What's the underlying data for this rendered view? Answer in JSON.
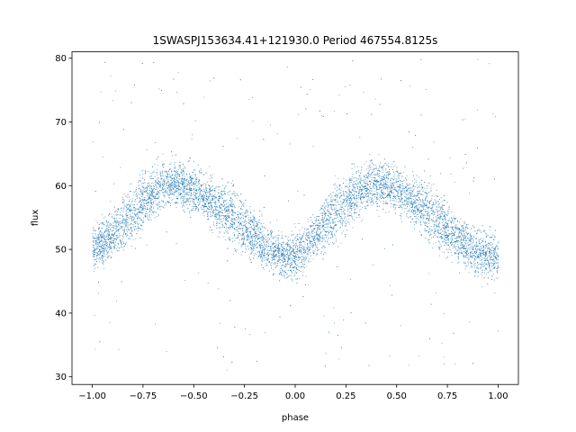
{
  "chart_data": {
    "type": "scatter",
    "title": "1SWASPJ153634.41+121930.0 Period 467554.8125s",
    "xlabel": "phase",
    "ylabel": "flux",
    "xlim": [
      -1.1,
      1.1
    ],
    "ylim": [
      28.8,
      81.0
    ],
    "xticks": [
      -1.0,
      -0.75,
      -0.5,
      -0.25,
      0.0,
      0.25,
      0.5,
      0.75,
      1.0
    ],
    "xtick_labels": [
      "−1.00",
      "−0.75",
      "−0.50",
      "−0.25",
      "0.00",
      "0.25",
      "0.50",
      "0.75",
      "1.00"
    ],
    "yticks": [
      30,
      40,
      50,
      60,
      70,
      80
    ],
    "ytick_labels": [
      "30",
      "40",
      "50",
      "60",
      "70",
      "80"
    ],
    "grid": false,
    "marker_color": "#1f77b4",
    "series": [
      {
        "phase": [
          -1.0,
          -0.95,
          -0.9,
          -0.85,
          -0.8,
          -0.75,
          -0.7,
          -0.65,
          -0.6,
          -0.55,
          -0.5,
          -0.45,
          -0.4,
          -0.35,
          -0.3,
          -0.25,
          -0.2,
          -0.15,
          -0.1,
          -0.05,
          0.0,
          0.05,
          0.1,
          0.15,
          0.2,
          0.25,
          0.3,
          0.35,
          0.4,
          0.45,
          0.5,
          0.55,
          0.6,
          0.65,
          0.7,
          0.75,
          0.8,
          0.85,
          0.9,
          0.95,
          1.0
        ],
        "flux": [
          50.5,
          51.0,
          52.5,
          54.0,
          55.5,
          57.5,
          59.0,
          60.0,
          60.5,
          60.0,
          59.5,
          58.5,
          57.0,
          56.0,
          55.0,
          53.5,
          52.0,
          50.5,
          49.5,
          49.0,
          49.0,
          50.5,
          52.5,
          54.5,
          56.0,
          57.5,
          59.0,
          60.0,
          60.5,
          60.0,
          59.5,
          58.5,
          57.0,
          56.0,
          55.0,
          53.5,
          52.0,
          50.5,
          49.5,
          49.0,
          49.0
        ],
        "spread": [
          3.5,
          3.5,
          3.5,
          4.0,
          4.5,
          4.5,
          4.0,
          3.5,
          3.5,
          3.5,
          3.5,
          3.5,
          4.0,
          4.5,
          4.5,
          4.0,
          3.5,
          3.5,
          3.5,
          3.5,
          3.5,
          3.5,
          3.5,
          4.0,
          4.5,
          4.5,
          4.0,
          3.5,
          3.5,
          3.5,
          3.5,
          3.5,
          4.0,
          4.5,
          4.5,
          4.0,
          3.5,
          3.5,
          3.5,
          3.5,
          3.5
        ]
      }
    ],
    "outliers_flux_range": [
      31.0,
      80.0
    ]
  }
}
